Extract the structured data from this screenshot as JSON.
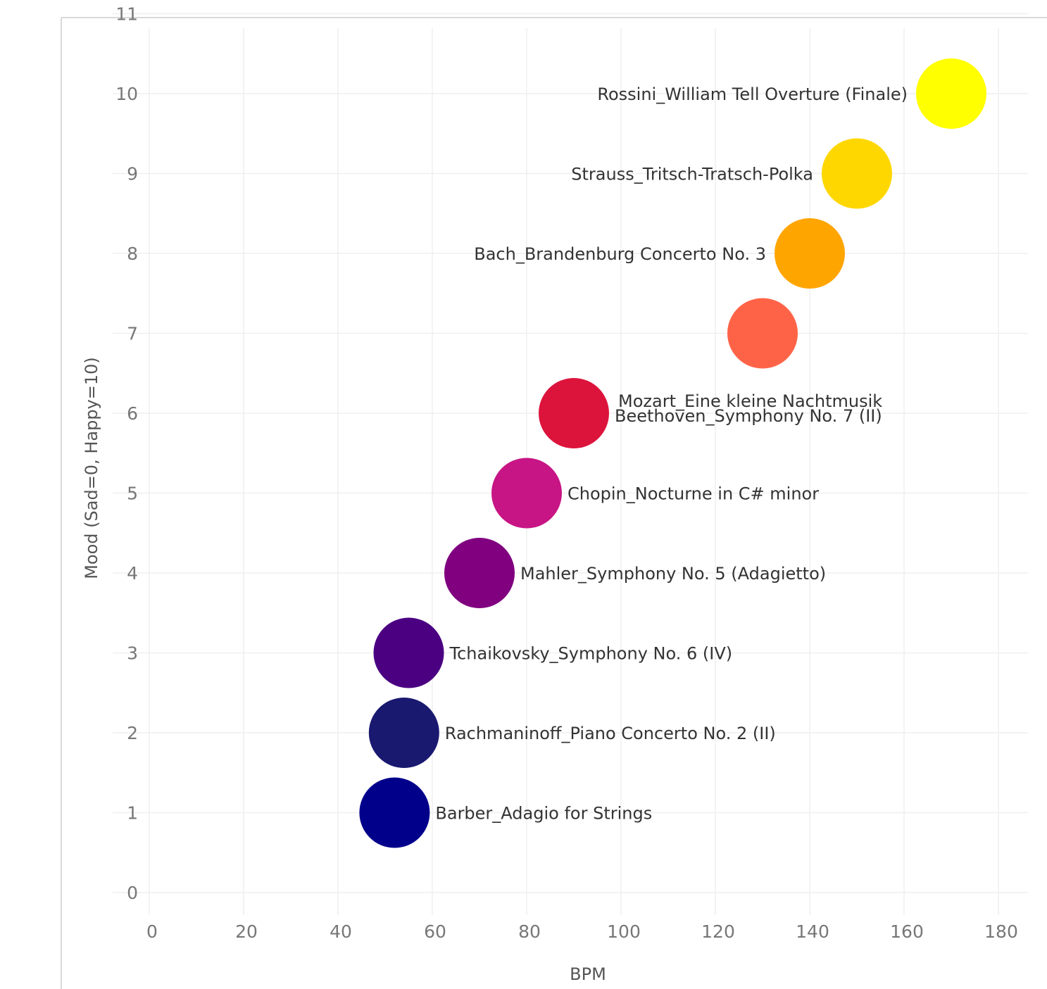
{
  "chart_data": {
    "type": "scatter",
    "title": "",
    "xlabel": "BPM",
    "ylabel": "Mood (Sad=0, Happy=10)",
    "xlim": [
      0,
      185
    ],
    "ylim": [
      -0.2,
      11
    ],
    "xticks": [
      0,
      20,
      40,
      60,
      80,
      100,
      120,
      140,
      160,
      180
    ],
    "yticks": [
      0,
      1,
      2,
      3,
      4,
      5,
      6,
      7,
      8,
      9,
      10,
      11
    ],
    "grid": true,
    "legend": "none",
    "points": [
      {
        "label": "Barber_Adagio for Strings",
        "x": 52,
        "y": 1,
        "color": "#00008B"
      },
      {
        "label": "Rachmaninoff_Piano Concerto No. 2 (II)",
        "x": 54,
        "y": 2,
        "color": "#191970"
      },
      {
        "label": "Tchaikovsky_Symphony No. 6 (IV)",
        "x": 55,
        "y": 3,
        "color": "#4B0082"
      },
      {
        "label": "Mahler_Symphony No. 5 (Adagietto)",
        "x": 70,
        "y": 4,
        "color": "#800080"
      },
      {
        "label": "Chopin_Nocturne in C# minor",
        "x": 80,
        "y": 5,
        "color": "#C71585"
      },
      {
        "label": "Beethoven_Symphony No. 7 (II)",
        "x": 90,
        "y": 6,
        "color": "#DC143C"
      },
      {
        "label": "Mozart_Eine kleine Nachtmusik",
        "x": 130,
        "y": 7,
        "color": "#FF6347"
      },
      {
        "label": "Bach_Brandenburg Concerto No. 3",
        "x": 140,
        "y": 8,
        "color": "#FFA500"
      },
      {
        "label": "Strauss_Tritsch-Tratsch-Polka",
        "x": 150,
        "y": 9,
        "color": "#FFD700"
      },
      {
        "label": "Rossini_William Tell Overture (Finale)",
        "x": 170,
        "y": 10,
        "color": "#FFFF00"
      }
    ]
  }
}
